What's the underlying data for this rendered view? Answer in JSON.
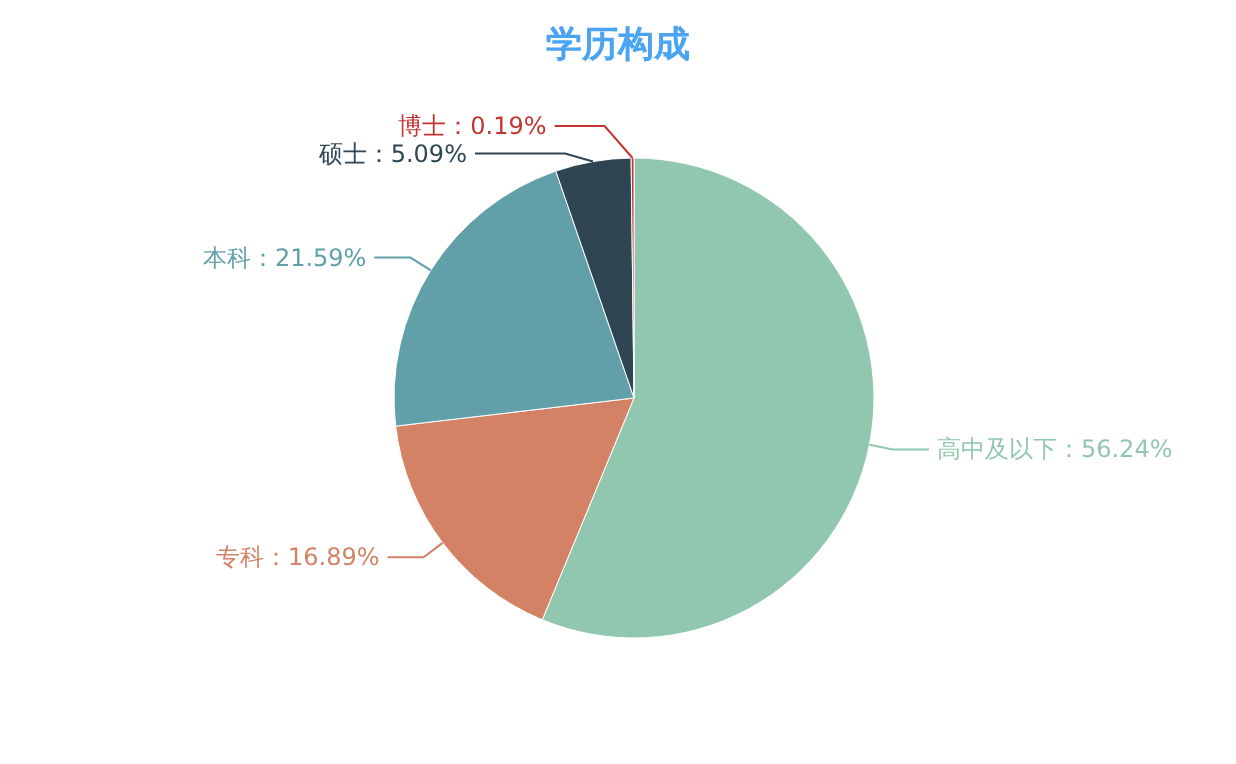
{
  "chart_data": {
    "type": "pie",
    "title": "学历构成",
    "categories": [
      "高中及以下",
      "专科",
      "本科",
      "硕士",
      "博士"
    ],
    "values": [
      56.24,
      16.89,
      21.59,
      5.09,
      0.19
    ],
    "value_labels": [
      "：56.24%",
      "：16.89%",
      "：21.59%",
      "：5.09%",
      "：0.19%"
    ],
    "colors": [
      "#91c7ae",
      "#d48265",
      "#61a0a8",
      "#2f4554",
      "#c23531"
    ]
  }
}
